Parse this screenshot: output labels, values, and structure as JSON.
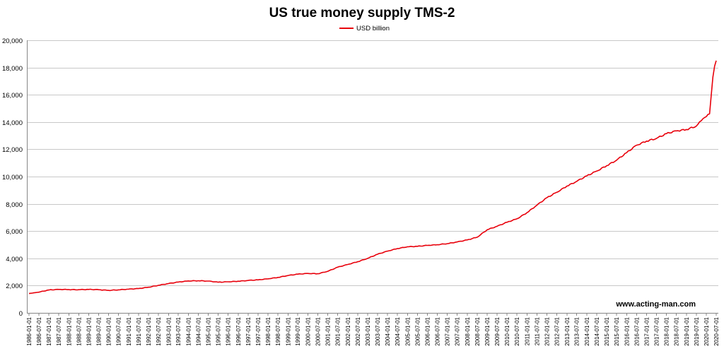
{
  "chart_data": {
    "type": "line",
    "title": "US true money supply TMS-2",
    "xlabel": "",
    "ylabel": "",
    "ylim": [
      0,
      20000
    ],
    "yticks": [
      0,
      2000,
      4000,
      6000,
      8000,
      10000,
      12000,
      14000,
      16000,
      18000,
      20000
    ],
    "grid": "horizontal",
    "legend": "top-center",
    "watermark": "www.acting-man.com",
    "line_color": "#e8000b",
    "x_tick_labels": [
      "1986-01-01",
      "1986-07-01",
      "1987-01-01",
      "1987-07-01",
      "1988-01-01",
      "1988-07-01",
      "1989-01-01",
      "1989-07-01",
      "1990-01-01",
      "1990-07-01",
      "1991-01-01",
      "1991-07-01",
      "1992-01-01",
      "1992-07-01",
      "1993-01-01",
      "1993-07-01",
      "1994-01-01",
      "1994-07-01",
      "1995-01-01",
      "1995-07-01",
      "1996-01-01",
      "1996-07-01",
      "1997-01-01",
      "1997-07-01",
      "1998-01-01",
      "1998-07-01",
      "1999-01-01",
      "1999-07-01",
      "2000-01-01",
      "2000-07-01",
      "2001-01-01",
      "2001-07-01",
      "2002-01-01",
      "2002-07-01",
      "2003-01-01",
      "2003-07-01",
      "2004-01-01",
      "2004-07-01",
      "2005-01-01",
      "2005-07-01",
      "2006-01-01",
      "2006-07-01",
      "2007-01-01",
      "2007-07-01",
      "2008-01-01",
      "2008-07-01",
      "2009-01-01",
      "2009-07-01",
      "2010-01-01",
      "2010-07-01",
      "2011-01-01",
      "2011-07-01",
      "2012-01-01",
      "2012-07-01",
      "2013-01-01",
      "2013-07-01",
      "2014-01-01",
      "2014-07-01",
      "2015-01-01",
      "2015-07-01",
      "2016-01-01",
      "2016-07-01",
      "2017-01-01",
      "2017-07-01",
      "2018-01-01",
      "2018-07-01",
      "2019-01-01",
      "2019-07-01",
      "2020-01-01",
      "2020-07-01"
    ],
    "series": [
      {
        "name": "USD billion",
        "points": [
          [
            "1986-01-01",
            1420
          ],
          [
            "1986-07-01",
            1520
          ],
          [
            "1987-01-01",
            1680
          ],
          [
            "1987-07-01",
            1720
          ],
          [
            "1988-01-01",
            1710
          ],
          [
            "1988-07-01",
            1700
          ],
          [
            "1989-01-01",
            1720
          ],
          [
            "1989-07-01",
            1700
          ],
          [
            "1990-01-01",
            1650
          ],
          [
            "1990-07-01",
            1690
          ],
          [
            "1991-01-01",
            1740
          ],
          [
            "1991-07-01",
            1780
          ],
          [
            "1992-01-01",
            1880
          ],
          [
            "1992-07-01",
            2020
          ],
          [
            "1993-01-01",
            2150
          ],
          [
            "1993-07-01",
            2260
          ],
          [
            "1994-01-01",
            2340
          ],
          [
            "1994-07-01",
            2360
          ],
          [
            "1995-01-01",
            2330
          ],
          [
            "1995-07-01",
            2250
          ],
          [
            "1996-01-01",
            2280
          ],
          [
            "1996-07-01",
            2320
          ],
          [
            "1997-01-01",
            2380
          ],
          [
            "1997-07-01",
            2420
          ],
          [
            "1998-01-01",
            2500
          ],
          [
            "1998-07-01",
            2600
          ],
          [
            "1999-01-01",
            2740
          ],
          [
            "1999-07-01",
            2840
          ],
          [
            "2000-01-01",
            2890
          ],
          [
            "2000-07-01",
            2870
          ],
          [
            "2001-01-01",
            3050
          ],
          [
            "2001-07-01",
            3350
          ],
          [
            "2002-01-01",
            3550
          ],
          [
            "2002-07-01",
            3750
          ],
          [
            "2003-01-01",
            4000
          ],
          [
            "2003-07-01",
            4300
          ],
          [
            "2004-01-01",
            4530
          ],
          [
            "2004-07-01",
            4720
          ],
          [
            "2005-01-01",
            4850
          ],
          [
            "2005-07-01",
            4880
          ],
          [
            "2006-01-01",
            4950
          ],
          [
            "2006-07-01",
            5000
          ],
          [
            "2007-01-01",
            5080
          ],
          [
            "2007-07-01",
            5200
          ],
          [
            "2008-01-01",
            5350
          ],
          [
            "2008-07-01",
            5550
          ],
          [
            "2009-01-01",
            6100
          ],
          [
            "2009-07-01",
            6350
          ],
          [
            "2010-01-01",
            6650
          ],
          [
            "2010-07-01",
            6900
          ],
          [
            "2011-01-01",
            7350
          ],
          [
            "2011-07-01",
            7900
          ],
          [
            "2012-01-01",
            8450
          ],
          [
            "2012-07-01",
            8850
          ],
          [
            "2013-01-01",
            9300
          ],
          [
            "2013-07-01",
            9650
          ],
          [
            "2014-01-01",
            10050
          ],
          [
            "2014-07-01",
            10400
          ],
          [
            "2015-01-01",
            10800
          ],
          [
            "2015-07-01",
            11200
          ],
          [
            "2016-01-01",
            11750
          ],
          [
            "2016-07-01",
            12300
          ],
          [
            "2017-01-01",
            12600
          ],
          [
            "2017-07-01",
            12800
          ],
          [
            "2018-01-01",
            13150
          ],
          [
            "2018-07-01",
            13350
          ],
          [
            "2019-01-01",
            13450
          ],
          [
            "2019-07-01",
            13700
          ],
          [
            "2019-10-01",
            14100
          ],
          [
            "2020-01-01",
            14400
          ],
          [
            "2020-03-01",
            14600
          ],
          [
            "2020-04-01",
            16000
          ],
          [
            "2020-05-01",
            17300
          ],
          [
            "2020-06-01",
            18100
          ],
          [
            "2020-07-01",
            18500
          ]
        ]
      }
    ]
  }
}
